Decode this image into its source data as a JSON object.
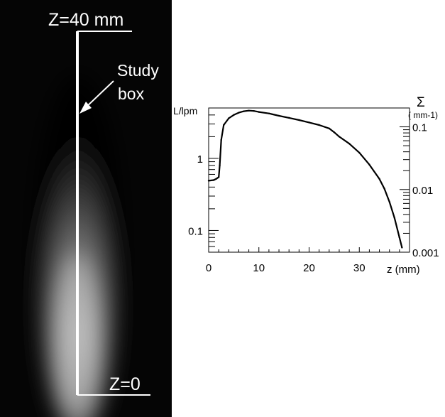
{
  "spray_image": {
    "top_label": "Z=40 mm",
    "bottom_label": "Z=0",
    "annotation_line1": "Study",
    "annotation_line2": "box"
  },
  "chart_data": {
    "type": "line",
    "title": "",
    "xlabel": "z (mm)",
    "ylabel_left": "L/lpm",
    "ylabel_right_symbol": "Σ",
    "ylabel_right_unit": "( mm-1)",
    "xlim": [
      0,
      40
    ],
    "ylim_left": [
      0.05,
      5
    ],
    "ylim_right": [
      0.001,
      0.2
    ],
    "y_scale": "log",
    "x_ticks": [
      0,
      10,
      20,
      30
    ],
    "x_tick_labels": [
      "0",
      "10",
      "20",
      "30"
    ],
    "y_left_tick_labels": [
      {
        "value": 1,
        "label": "1"
      },
      {
        "value": 0.1,
        "label": "0.1"
      }
    ],
    "y_right_tick_labels": [
      {
        "value": 0.1,
        "label": "0.1"
      },
      {
        "value": 0.01,
        "label": "0.01"
      },
      {
        "value": 0.001,
        "label": "0.001"
      }
    ],
    "grid": false,
    "series": [
      {
        "x": [
          0,
          1,
          1.5,
          2,
          2.2,
          2.5,
          3,
          4,
          5,
          6,
          7,
          8,
          9,
          10,
          12,
          14,
          16,
          18,
          20,
          22,
          24,
          25,
          26,
          28,
          30,
          32,
          34,
          35,
          36,
          37,
          38,
          38.5
        ],
        "y": [
          0.49,
          0.5,
          0.52,
          0.55,
          0.8,
          1.8,
          2.9,
          3.6,
          4.0,
          4.3,
          4.5,
          4.6,
          4.55,
          4.4,
          4.2,
          3.9,
          3.65,
          3.4,
          3.15,
          2.9,
          2.6,
          2.3,
          2.0,
          1.6,
          1.2,
          0.82,
          0.52,
          0.38,
          0.25,
          0.15,
          0.08,
          0.058
        ]
      }
    ]
  }
}
